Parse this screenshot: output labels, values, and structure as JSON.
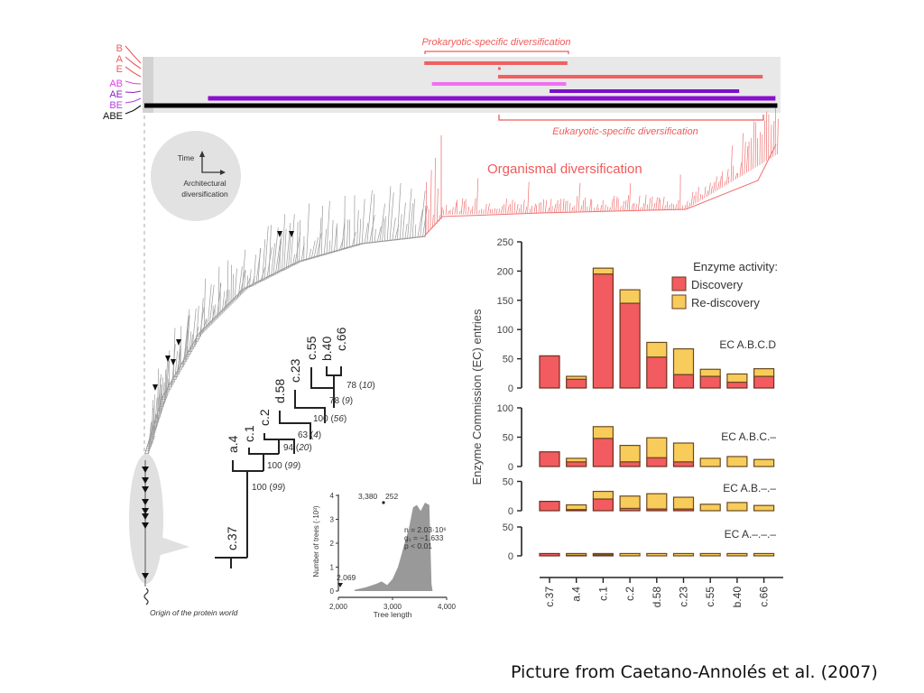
{
  "timeline": {
    "row_labels": [
      {
        "label": "B",
        "color": "#f05a5a"
      },
      {
        "label": "A",
        "color": "#f05a5a"
      },
      {
        "label": "E",
        "color": "#f05a5a"
      },
      {
        "label": "AB",
        "color": "#e040e0"
      },
      {
        "label": "AE",
        "color": "#8a20c8"
      },
      {
        "label": "BE",
        "color": "#b040e0"
      },
      {
        "label": "ABE",
        "color": "#111111"
      }
    ],
    "prokaryotic_label": "Prokaryotic-specific diversification",
    "eukaryotic_label": "Eukaryotic-specific diversification",
    "bars": [
      {
        "row": "A",
        "start": 0.44,
        "end": 0.665,
        "color": "#f06060"
      },
      {
        "row": "E-dot",
        "start": 0.556,
        "end": 0.56,
        "color": "#f06060"
      },
      {
        "row": "E",
        "start": 0.556,
        "end": 0.972,
        "color": "#f06060"
      },
      {
        "row": "AB",
        "start": 0.452,
        "end": 0.663,
        "color": "#f070f0"
      },
      {
        "row": "AE",
        "start": 0.637,
        "end": 0.935,
        "color": "#7a10c8"
      },
      {
        "row": "BE",
        "start": 0.1,
        "end": 0.992,
        "color": "#8a10d0"
      },
      {
        "row": "ABE",
        "start": 0.0,
        "end": 0.995,
        "color": "#000000"
      }
    ],
    "colors": {
      "red": "#f05a5a",
      "panel_bg": "#e6e6e6"
    }
  },
  "inset": {
    "time_label": "Time",
    "x_label_line1": "Architectural",
    "x_label_line2": "diversification"
  },
  "tree": {
    "organismal_label": "Organismal diversification",
    "origin_label": "Origin of the protein world",
    "colors": {
      "gray": "#888888",
      "red": "#f07070"
    }
  },
  "cladogram": {
    "taxa": [
      "c.37",
      "a.4",
      "c.1",
      "c.2",
      "d.58",
      "c.23",
      "c.55",
      "b.40",
      "c.66"
    ],
    "support": [
      {
        "value": "100",
        "paren": "99"
      },
      {
        "value": "100",
        "paren": "99"
      },
      {
        "value": "94",
        "paren": "20"
      },
      {
        "value": "63",
        "paren": "4"
      },
      {
        "value": "100",
        "paren": "56"
      },
      {
        "value": "78",
        "paren": "9"
      },
      {
        "value": "78",
        "paren": "10"
      }
    ]
  },
  "histogram": {
    "ylabel": "Number of trees (·10³)",
    "xlabel": "Tree length",
    "x_ticks": [
      "2,000",
      "3,000",
      "4,000"
    ],
    "y_ticks": [
      "0",
      "1",
      "2",
      "3",
      "4"
    ],
    "annotation_min": "2,069",
    "annotation_mode": "3,380",
    "annotation_mode2": "252",
    "stats": [
      "n = 2.03·10⁶",
      "g₁ = −1.633",
      "p < 0.01"
    ]
  },
  "chart_data": {
    "type": "bar",
    "stacked": true,
    "title": "",
    "ylabel": "Enzyme Commission (EC) entries",
    "xlabel": "",
    "categories": [
      "c.37",
      "a.4",
      "c.1",
      "c.2",
      "d.58",
      "c.23",
      "c.55",
      "b.40",
      "c.66"
    ],
    "legend": {
      "title": "Enzyme activity:",
      "position": "top-right",
      "entries": [
        {
          "name": "Discovery",
          "color": "#f25b5f"
        },
        {
          "name": "Re-discovery",
          "color": "#f8cc5a"
        }
      ]
    },
    "panels": [
      {
        "name": "EC A.B.C.D",
        "ylim": [
          0,
          250
        ],
        "yticks": [
          0,
          50,
          100,
          150,
          200,
          250
        ],
        "series": [
          {
            "name": "Discovery",
            "values": [
              55,
              15,
              195,
              145,
              53,
              23,
              20,
              10,
              20
            ]
          },
          {
            "name": "Re-discovery",
            "values": [
              0,
              5,
              10,
              23,
              25,
              44,
              12,
              14,
              13
            ]
          }
        ]
      },
      {
        "name": "EC A.B.C.–",
        "ylim": [
          0,
          100
        ],
        "yticks": [
          0,
          50,
          100
        ],
        "series": [
          {
            "name": "Discovery",
            "values": [
              25,
              8,
              48,
              8,
              15,
              8,
              0,
              0,
              0
            ]
          },
          {
            "name": "Re-discovery",
            "values": [
              0,
              6,
              20,
              28,
              34,
              32,
              14,
              17,
              12
            ]
          }
        ]
      },
      {
        "name": "EC A.B.–.–",
        "ylim": [
          0,
          50
        ],
        "yticks": [
          0,
          50
        ],
        "series": [
          {
            "name": "Discovery",
            "values": [
              16,
              2,
              20,
              4,
              3,
              3,
              0,
              0,
              0
            ]
          },
          {
            "name": "Re-discovery",
            "values": [
              0,
              8,
              13,
              21,
              26,
              20,
              11,
              14,
              9
            ]
          }
        ]
      },
      {
        "name": "EC A.–.–.–",
        "ylim": [
          0,
          50
        ],
        "yticks": [
          0,
          50
        ],
        "series": [
          {
            "name": "Discovery",
            "values": [
              4,
              1,
              2,
              0,
              0,
              0,
              0,
              0,
              0
            ]
          },
          {
            "name": "Re-discovery",
            "values": [
              0,
              3,
              2,
              4,
              4,
              4,
              4,
              4,
              4
            ]
          }
        ]
      }
    ]
  },
  "caption": "Picture from Caetano-Annolés et al. (2007)"
}
